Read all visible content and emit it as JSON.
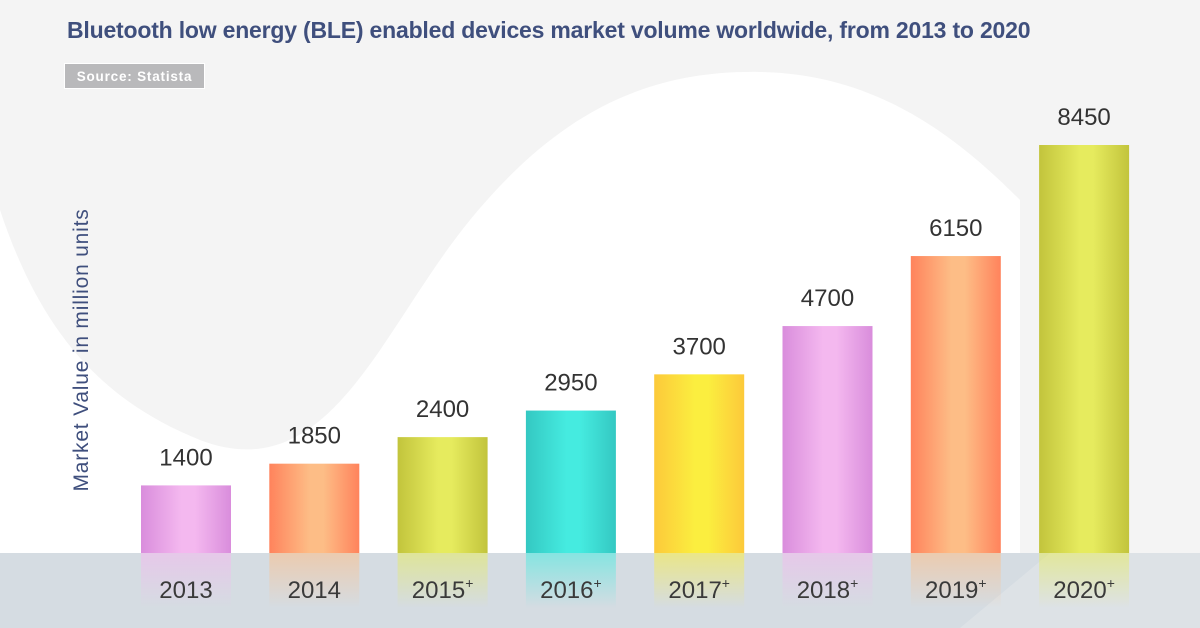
{
  "chart_data": {
    "type": "bar",
    "title": "Bluetooth low energy (BLE) enabled devices market volume worldwide, from 2013 to 2020",
    "source": "Source: Statista",
    "xlabel": "",
    "ylabel": "Market Value in million units",
    "categories": [
      "2013",
      "2014",
      "2015",
      "2016",
      "2017",
      "2018",
      "2019",
      "2020"
    ],
    "category_marks": [
      "",
      "",
      "+",
      "+",
      "+",
      "+",
      "+",
      "+"
    ],
    "values": [
      1400,
      1850,
      2400,
      2950,
      3700,
      4700,
      6150,
      8450
    ],
    "value_labels": [
      "1400",
      "1850",
      "2400",
      "2950",
      "3700",
      "4700",
      "6150",
      "8450"
    ],
    "ylim": [
      0,
      9000
    ],
    "grid": false,
    "legend": "none",
    "bar_colors": [
      {
        "edge": "#d98ddc",
        "mid": "#f4b8ef"
      },
      {
        "edge": "#ff835c",
        "mid": "#fdbd86"
      },
      {
        "edge": "#c2c43c",
        "mid": "#e6eb5e"
      },
      {
        "edge": "#34c8c2",
        "mid": "#45ebe0"
      },
      {
        "edge": "#fcc93a",
        "mid": "#fbee3f"
      },
      {
        "edge": "#d98ddc",
        "mid": "#f4b8ef"
      },
      {
        "edge": "#ff835c",
        "mid": "#fdbd86"
      },
      {
        "edge": "#c2c43c",
        "mid": "#e6eb5e"
      }
    ]
  },
  "colors": {
    "title": "#3f4f7d",
    "background": "#f4f4f4",
    "floor": "#d5dce2",
    "source_badge": "#b9b9bb"
  }
}
